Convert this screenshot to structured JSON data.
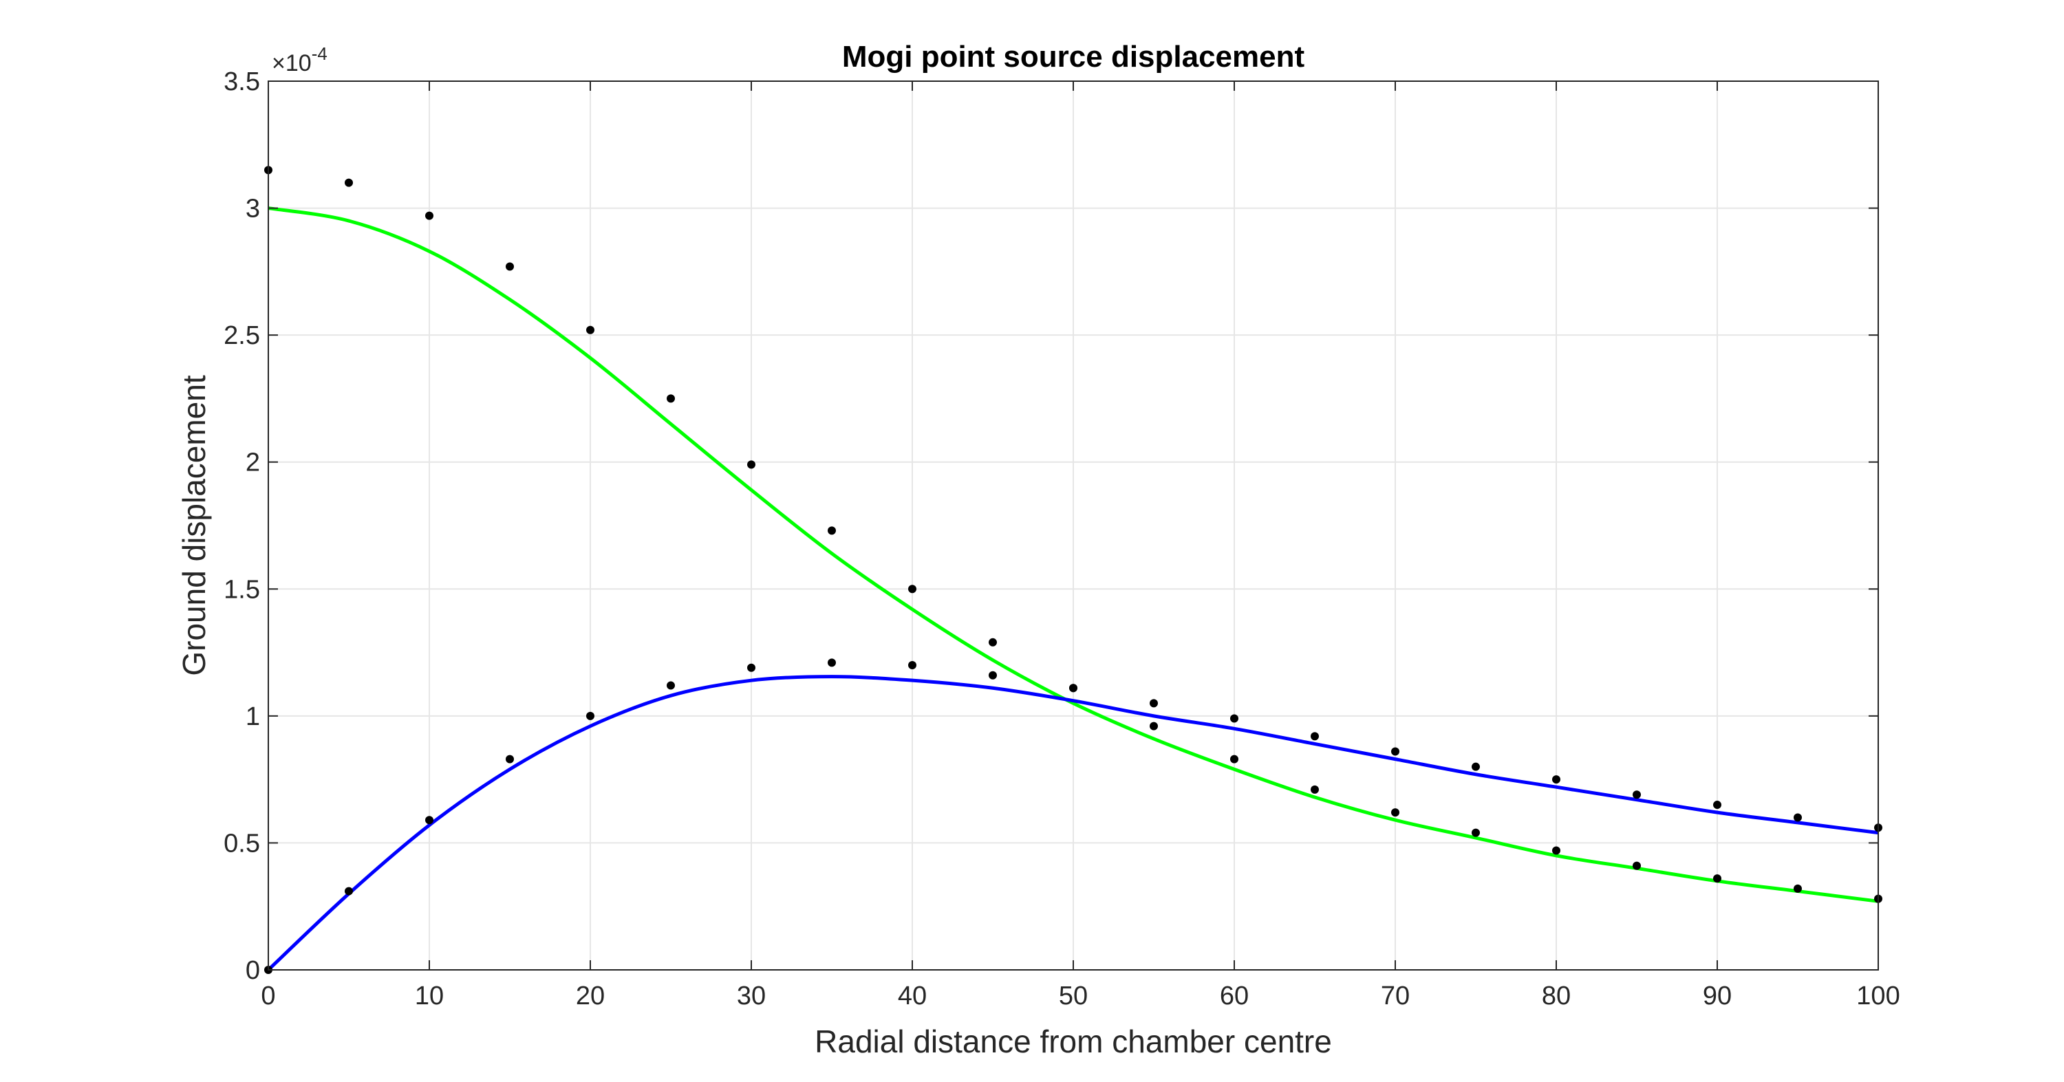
{
  "chart_data": {
    "type": "line",
    "title": "Mogi point source displacement",
    "xlabel": "Radial distance from chamber centre",
    "ylabel": "Ground displacement",
    "y_exponent_label": "×10",
    "y_exponent_power": "-4",
    "xlim": [
      0,
      100
    ],
    "ylim": [
      0,
      3.5
    ],
    "x_ticks": [
      0,
      10,
      20,
      30,
      40,
      50,
      60,
      70,
      80,
      90,
      100
    ],
    "y_ticks": [
      0,
      0.5,
      1,
      1.5,
      2,
      2.5,
      3,
      3.5
    ],
    "y_tick_labels": [
      "0",
      "0.5",
      "1",
      "1.5",
      "2",
      "2.5",
      "3",
      "3.5"
    ],
    "grid": true,
    "units_scale": "y values in units of 1e-4",
    "series": [
      {
        "kind": "line",
        "color": "#00ff00",
        "x": [
          0,
          5,
          10,
          15,
          20,
          25,
          30,
          35,
          40,
          45,
          50,
          55,
          60,
          65,
          70,
          75,
          80,
          85,
          90,
          95,
          100
        ],
        "y": [
          3.0,
          2.95,
          2.83,
          2.64,
          2.41,
          2.15,
          1.89,
          1.64,
          1.42,
          1.22,
          1.05,
          0.91,
          0.79,
          0.68,
          0.59,
          0.52,
          0.45,
          0.4,
          0.35,
          0.31,
          0.27
        ]
      },
      {
        "kind": "line",
        "color": "#0000ff",
        "x": [
          0,
          5,
          10,
          15,
          20,
          25,
          30,
          35,
          40,
          45,
          50,
          55,
          60,
          65,
          70,
          75,
          80,
          85,
          90,
          95,
          100
        ],
        "y": [
          0.0,
          0.3,
          0.57,
          0.79,
          0.96,
          1.08,
          1.14,
          1.155,
          1.14,
          1.11,
          1.06,
          1.0,
          0.95,
          0.89,
          0.83,
          0.77,
          0.72,
          0.67,
          0.62,
          0.58,
          0.54
        ]
      },
      {
        "kind": "scatter",
        "color": "#000000",
        "x": [
          0,
          5,
          10,
          15,
          20,
          25,
          30,
          35,
          40,
          45,
          50,
          55,
          60,
          65,
          70,
          75,
          80,
          85,
          90,
          95,
          100
        ],
        "y": [
          3.15,
          3.1,
          2.97,
          2.77,
          2.52,
          2.25,
          1.99,
          1.73,
          1.5,
          1.29,
          1.11,
          0.96,
          0.83,
          0.71,
          0.62,
          0.54,
          0.47,
          0.41,
          0.36,
          0.32,
          0.28
        ]
      },
      {
        "kind": "scatter",
        "color": "#000000",
        "x": [
          0,
          5,
          10,
          15,
          20,
          25,
          30,
          35,
          40,
          45,
          50,
          55,
          60,
          65,
          70,
          75,
          80,
          85,
          90,
          95,
          100
        ],
        "y": [
          0.0,
          0.31,
          0.59,
          0.83,
          1.0,
          1.12,
          1.19,
          1.21,
          1.2,
          1.16,
          1.11,
          1.05,
          0.99,
          0.92,
          0.86,
          0.8,
          0.75,
          0.69,
          0.65,
          0.6,
          0.56
        ]
      }
    ]
  }
}
